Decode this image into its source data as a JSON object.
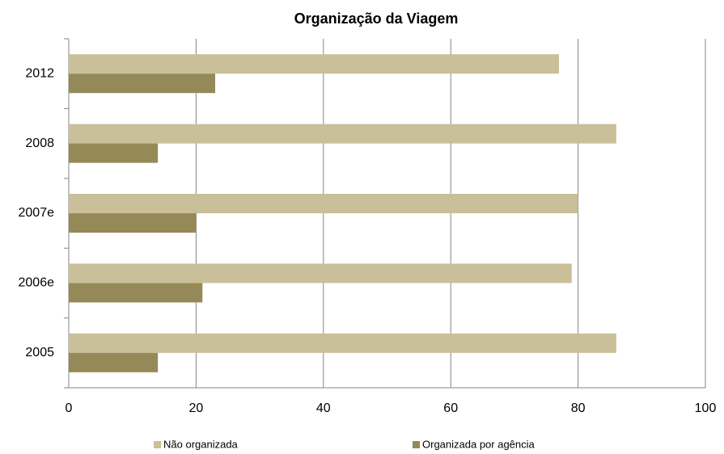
{
  "chart_data": {
    "type": "bar",
    "orientation": "horizontal",
    "title": "Organização da Viagem",
    "categories": [
      "2005",
      "2006e",
      "2007e",
      "2008",
      "2012"
    ],
    "series": [
      {
        "name": "Não organizada",
        "color": "#c9bf98",
        "values": [
          86,
          79,
          80,
          86,
          77
        ]
      },
      {
        "name": "Organizada por agência",
        "color": "#958a57",
        "values": [
          14,
          21,
          20,
          14,
          23
        ]
      }
    ],
    "xlim": [
      0,
      100
    ],
    "xticks": [
      0,
      20,
      40,
      60,
      80,
      100
    ],
    "grid": true,
    "legend": "bottom"
  }
}
